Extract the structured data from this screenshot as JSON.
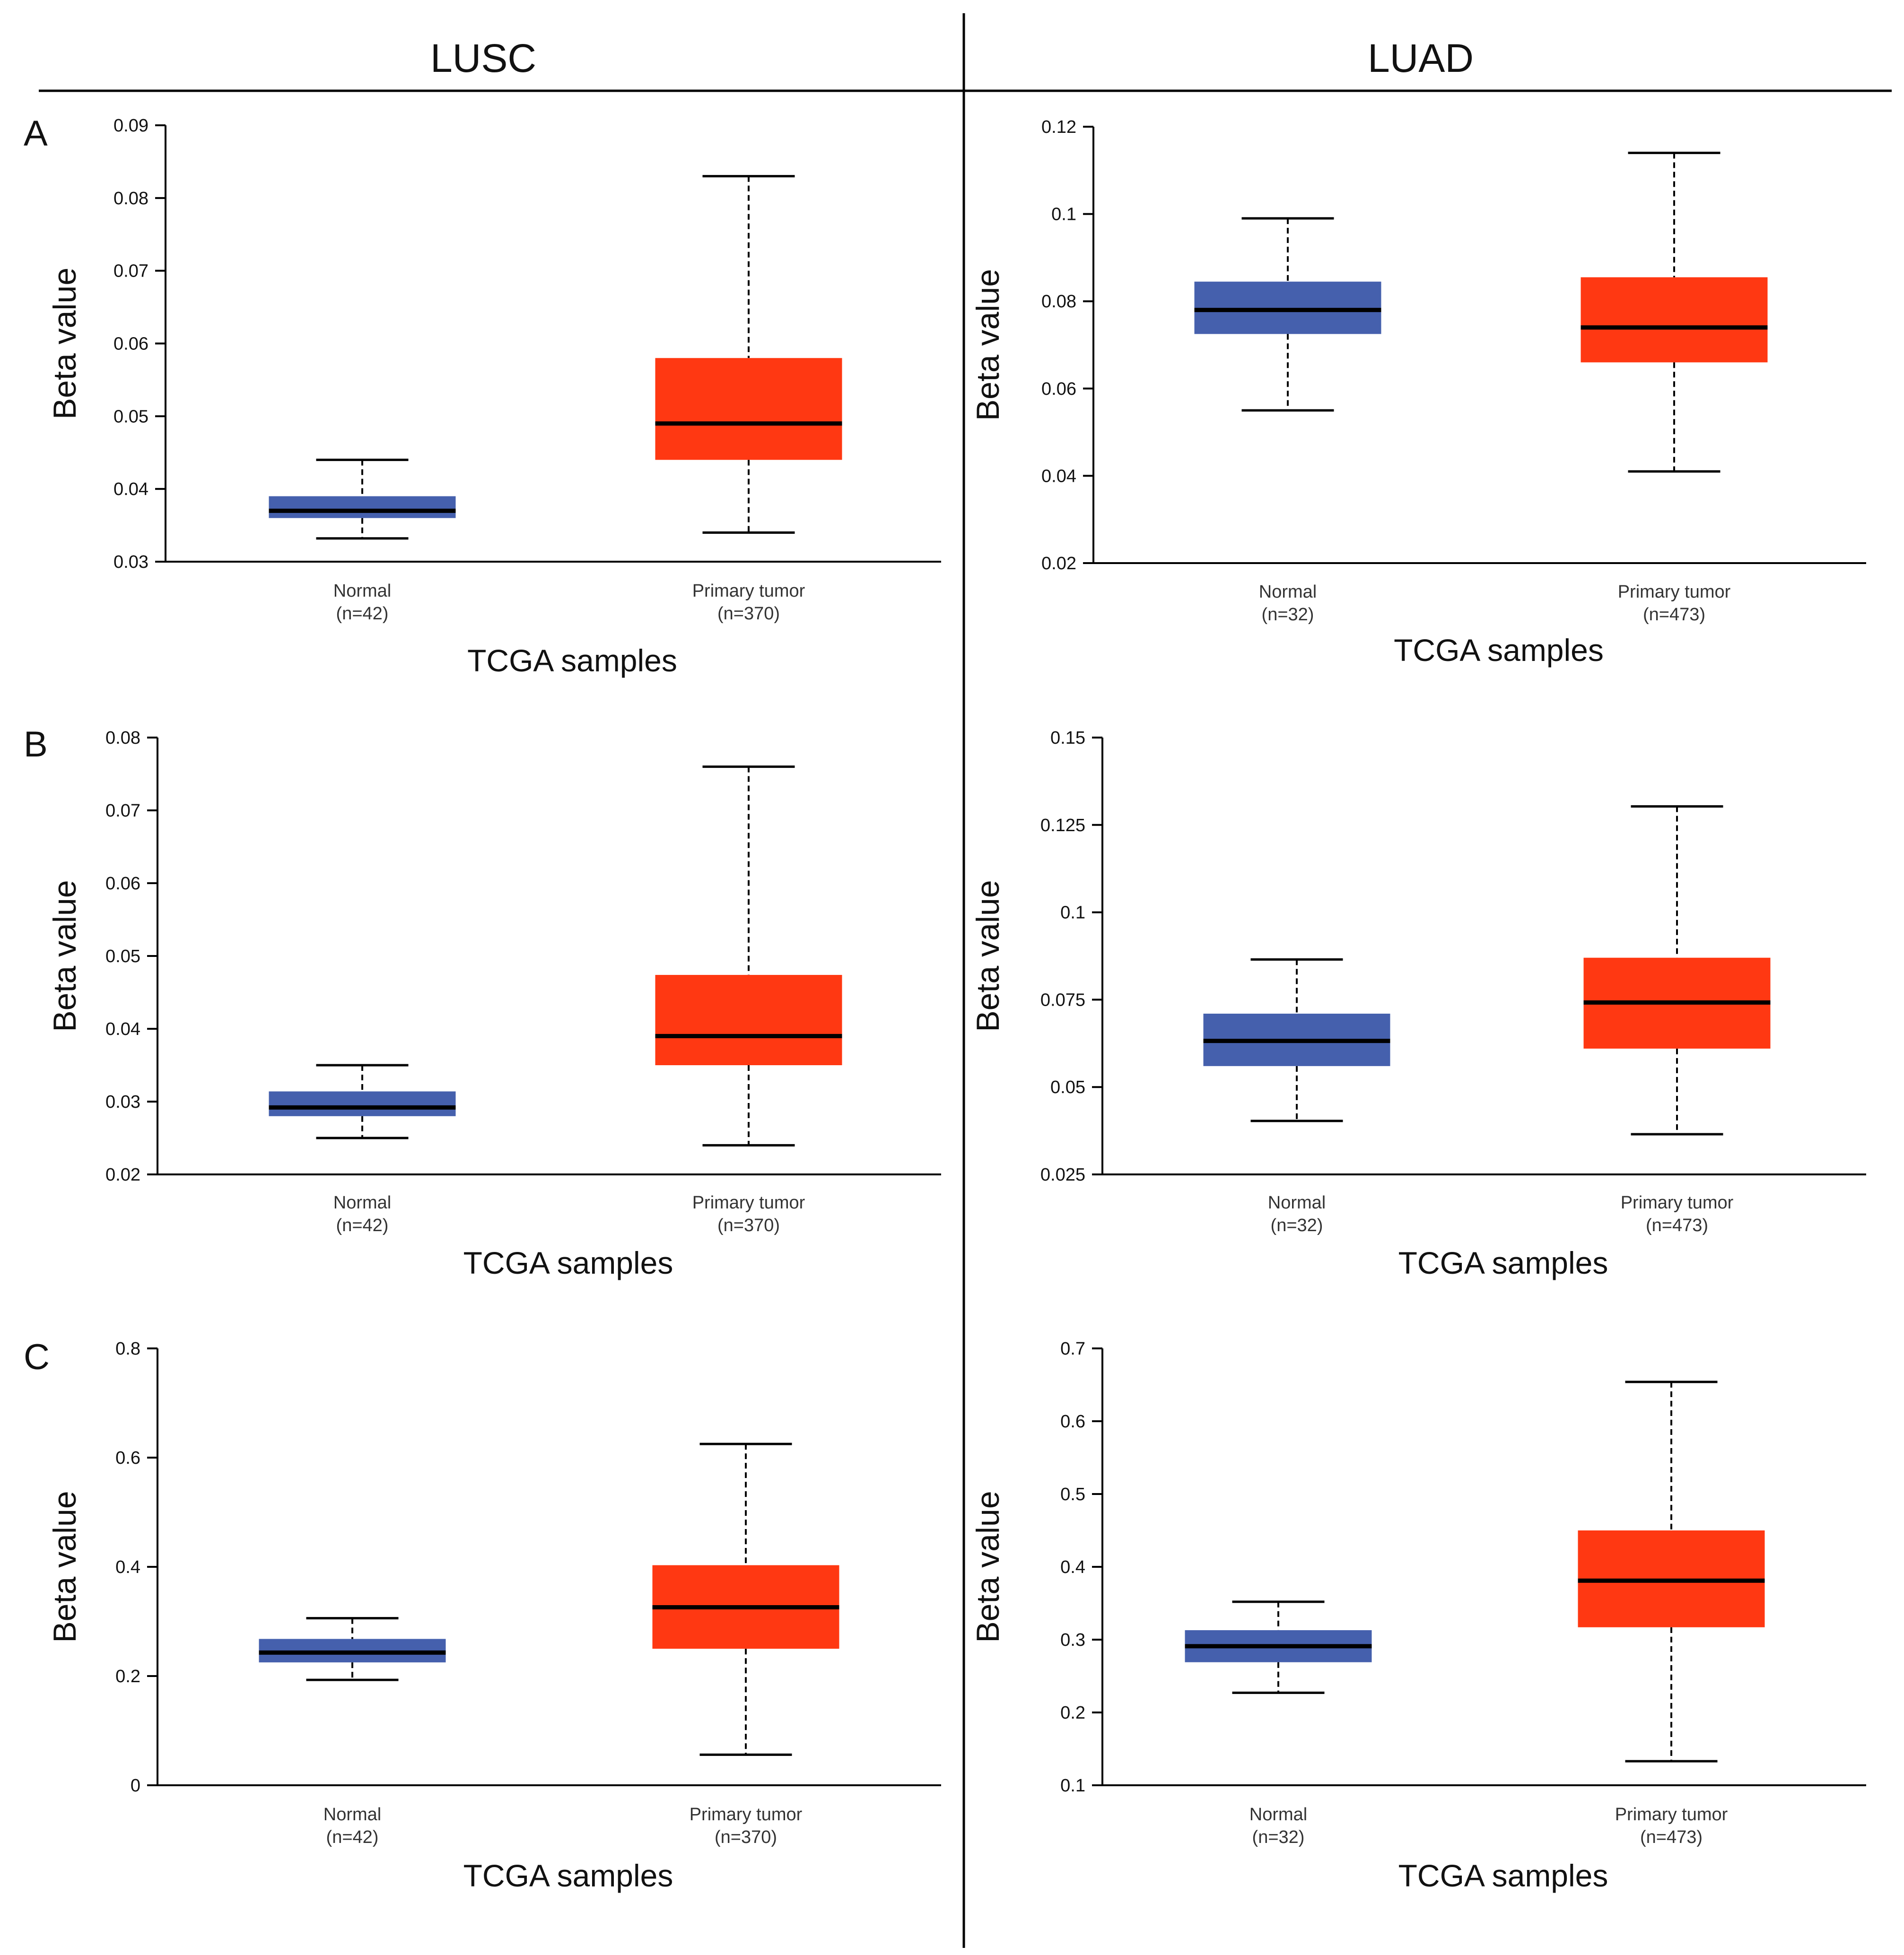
{
  "columns": [
    {
      "label": "LUSC"
    },
    {
      "label": "LUAD"
    }
  ],
  "row_labels": [
    "A",
    "B",
    "C"
  ],
  "colors": {
    "normal": "#4560ad",
    "tumor": "#ff3812",
    "median": "#000000",
    "axis": "#000000",
    "text": "#111111"
  },
  "chart_data": [
    {
      "type": "box",
      "panel": "A",
      "column": "LUSC",
      "ylabel": "Beta value",
      "xlabel": "TCGA samples",
      "ylim": [
        0.03,
        0.09
      ],
      "yticks": [
        0.03,
        0.04,
        0.05,
        0.06,
        0.07,
        0.08,
        0.09
      ],
      "ytick_labels": [
        "0.03",
        "0.04",
        "0.05",
        "0.06",
        "0.07",
        "0.08",
        "0.09"
      ],
      "series": [
        {
          "name": "Normal",
          "n_label": "(n=42)",
          "color": "#4560ad",
          "min": 0.0332,
          "q1": 0.036,
          "median": 0.037,
          "q3": 0.039,
          "max": 0.044
        },
        {
          "name": "Primary tumor",
          "n_label": "(n=370)",
          "color": "#ff3812",
          "min": 0.034,
          "q1": 0.044,
          "median": 0.049,
          "q3": 0.058,
          "max": 0.083
        }
      ]
    },
    {
      "type": "box",
      "panel": "A",
      "column": "LUAD",
      "ylabel": "Beta value",
      "xlabel": "TCGA samples",
      "ylim": [
        0.02,
        0.12
      ],
      "yticks": [
        0.02,
        0.04,
        0.06,
        0.08,
        0.1,
        0.12
      ],
      "ytick_labels": [
        "0.02",
        "0.04",
        "0.06",
        "0.08",
        "0.1",
        "0.12"
      ],
      "series": [
        {
          "name": "Normal",
          "n_label": "(n=32)",
          "color": "#4560ad",
          "min": 0.055,
          "q1": 0.0725,
          "median": 0.078,
          "q3": 0.0845,
          "max": 0.099
        },
        {
          "name": "Primary tumor",
          "n_label": "(n=473)",
          "color": "#ff3812",
          "min": 0.041,
          "q1": 0.066,
          "median": 0.074,
          "q3": 0.0855,
          "max": 0.114
        }
      ]
    },
    {
      "type": "box",
      "panel": "B",
      "column": "LUSC",
      "ylabel": "Beta value",
      "xlabel": "TCGA samples",
      "ylim": [
        0.02,
        0.08
      ],
      "yticks": [
        0.02,
        0.03,
        0.04,
        0.05,
        0.06,
        0.07,
        0.08
      ],
      "ytick_labels": [
        "0.02",
        "0.03",
        "0.04",
        "0.05",
        "0.06",
        "0.07",
        "0.08"
      ],
      "series": [
        {
          "name": "Normal",
          "n_label": "(n=42)",
          "color": "#4560ad",
          "min": 0.025,
          "q1": 0.028,
          "median": 0.0292,
          "q3": 0.0314,
          "max": 0.035
        },
        {
          "name": "Primary tumor",
          "n_label": "(n=370)",
          "color": "#ff3812",
          "min": 0.024,
          "q1": 0.035,
          "median": 0.039,
          "q3": 0.0474,
          "max": 0.076
        }
      ]
    },
    {
      "type": "box",
      "panel": "B",
      "column": "LUAD",
      "ylabel": "Beta value",
      "xlabel": "TCGA samples",
      "ylim": [
        0.025,
        0.15
      ],
      "yticks": [
        0.025,
        0.05,
        0.075,
        0.1,
        0.125,
        0.15
      ],
      "ytick_labels": [
        "0.025",
        "0.05",
        "0.075",
        "0.1",
        "0.125",
        "0.15"
      ],
      "series": [
        {
          "name": "Normal",
          "n_label": "(n=32)",
          "color": "#4560ad",
          "min": 0.0403,
          "q1": 0.056,
          "median": 0.0632,
          "q3": 0.071,
          "max": 0.0865
        },
        {
          "name": "Primary tumor",
          "n_label": "(n=473)",
          "color": "#ff3812",
          "min": 0.0365,
          "q1": 0.061,
          "median": 0.0742,
          "q3": 0.087,
          "max": 0.1303
        }
      ]
    },
    {
      "type": "box",
      "panel": "C",
      "column": "LUSC",
      "ylabel": "Beta value",
      "xlabel": "TCGA samples",
      "ylim": [
        0,
        0.8
      ],
      "yticks": [
        0,
        0.2,
        0.4,
        0.6,
        0.8
      ],
      "ytick_labels": [
        "0",
        "0.2",
        "0.4",
        "0.6",
        "0.8"
      ],
      "series": [
        {
          "name": "Normal",
          "n_label": "(n=42)",
          "color": "#4560ad",
          "min": 0.193,
          "q1": 0.225,
          "median": 0.243,
          "q3": 0.268,
          "max": 0.306
        },
        {
          "name": "Primary tumor",
          "n_label": "(n=370)",
          "color": "#ff3812",
          "min": 0.056,
          "q1": 0.25,
          "median": 0.326,
          "q3": 0.403,
          "max": 0.625
        }
      ]
    },
    {
      "type": "box",
      "panel": "C",
      "column": "LUAD",
      "ylabel": "Beta value",
      "xlabel": "TCGA samples",
      "ylim": [
        0.1,
        0.7
      ],
      "yticks": [
        0.1,
        0.2,
        0.3,
        0.4,
        0.5,
        0.6,
        0.7
      ],
      "ytick_labels": [
        "0.1",
        "0.2",
        "0.3",
        "0.4",
        "0.5",
        "0.6",
        "0.7"
      ],
      "series": [
        {
          "name": "Normal",
          "n_label": "(n=32)",
          "color": "#4560ad",
          "min": 0.227,
          "q1": 0.269,
          "median": 0.291,
          "q3": 0.313,
          "max": 0.352
        },
        {
          "name": "Primary tumor",
          "n_label": "(n=473)",
          "color": "#ff3812",
          "min": 0.133,
          "q1": 0.317,
          "median": 0.381,
          "q3": 0.45,
          "max": 0.654
        }
      ]
    }
  ]
}
